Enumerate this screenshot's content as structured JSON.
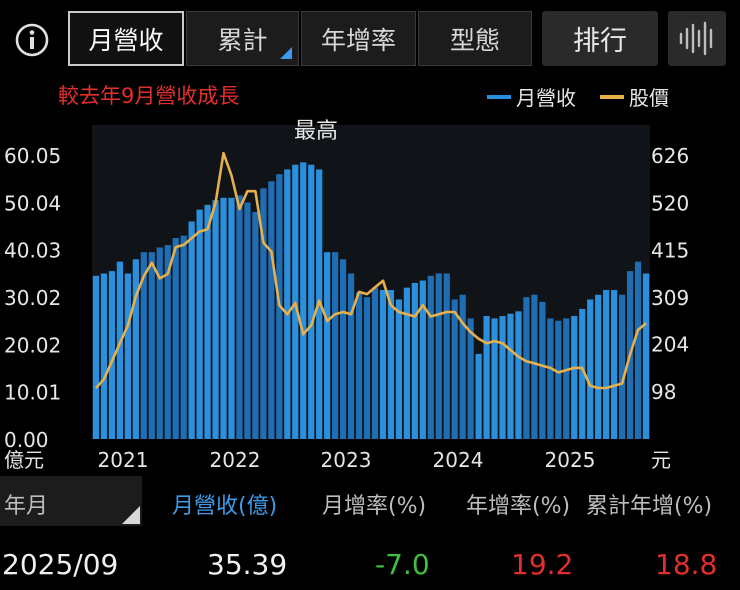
{
  "toolbar": {
    "tabs": [
      {
        "label": "月營收"
      },
      {
        "label": "累計"
      },
      {
        "label": "年增率"
      },
      {
        "label": "型態"
      }
    ],
    "rank_label": "排行",
    "icons": [
      "info-icon",
      "waveform-icon"
    ]
  },
  "subtitle": "較去年9月營收成長",
  "legend": {
    "revenue": "月營收",
    "price": "股價"
  },
  "colors": {
    "revenue_bar": "#2a8fdc",
    "revenue_bar_dark": "#1f6db3",
    "price_line": "#e8b04c",
    "growth_positive": "#e0302e",
    "growth_negative": "#3fbf3f",
    "accent": "#3d9be9"
  },
  "chart_data": {
    "type": "bar",
    "title": "",
    "subtitle": "較去年9月營收成長",
    "annotation": "最高",
    "left_axis": {
      "unit": "億元",
      "ticks": [
        "0.00",
        "10.01",
        "20.02",
        "30.02",
        "40.03",
        "50.04",
        "60.05"
      ],
      "range": [
        0,
        60.05
      ]
    },
    "right_axis": {
      "unit": "元",
      "ticks": [
        "98",
        "204",
        "309",
        "415",
        "520",
        "626"
      ],
      "range": [
        -9,
        626
      ]
    },
    "x_axis": {
      "labels": [
        "2021",
        "2022",
        "2023",
        "2024",
        "2025"
      ]
    },
    "series": [
      {
        "name": "月營收",
        "kind": "bar",
        "axis": "left",
        "values": [
          34.5,
          35.0,
          35.5,
          37.5,
          35.0,
          38.0,
          39.5,
          39.5,
          40.5,
          41.0,
          42.5,
          43.0,
          46.0,
          48.5,
          49.5,
          50.5,
          51.0,
          51.0,
          51.5,
          50.0,
          48.0,
          53.0,
          54.5,
          56.0,
          57.0,
          58.0,
          58.5,
          58.0,
          57.0,
          39.5,
          39.5,
          38.0,
          35.0,
          31.0,
          30.0,
          32.0,
          31.5,
          31.5,
          29.5,
          32.0,
          33.0,
          33.5,
          34.5,
          35.0,
          35.0,
          29.5,
          30.5,
          25.5,
          18.0,
          26.0,
          25.5,
          26.0,
          26.5,
          27.0,
          30.0,
          30.5,
          29.0,
          25.5,
          25.0,
          25.5,
          26.0,
          27.5,
          29.5,
          30.5,
          31.5,
          31.5,
          30.5,
          35.5,
          37.5,
          35.0
        ]
      },
      {
        "name": "股價",
        "kind": "line",
        "axis": "right",
        "values": [
          105,
          125,
          165,
          205,
          245,
          310,
          355,
          385,
          350,
          360,
          420,
          425,
          440,
          455,
          460,
          520,
          630,
          580,
          505,
          545,
          545,
          430,
          410,
          290,
          270,
          295,
          225,
          245,
          300,
          255,
          270,
          275,
          270,
          320,
          315,
          330,
          345,
          290,
          275,
          270,
          265,
          290,
          265,
          270,
          275,
          275,
          250,
          230,
          215,
          205,
          210,
          205,
          190,
          175,
          165,
          160,
          155,
          150,
          140,
          145,
          150,
          150,
          110,
          105,
          105,
          110,
          115,
          180,
          235,
          250
        ]
      }
    ]
  },
  "table": {
    "headers": [
      "年月",
      "月營收(億)",
      "月增率(%)",
      "年增率(%)",
      "累計年增(%)"
    ],
    "row": {
      "period": "2025/09",
      "revenue": "35.39",
      "mom": "-7.0",
      "yoy": "19.2",
      "ytd_yoy": "18.8"
    }
  }
}
